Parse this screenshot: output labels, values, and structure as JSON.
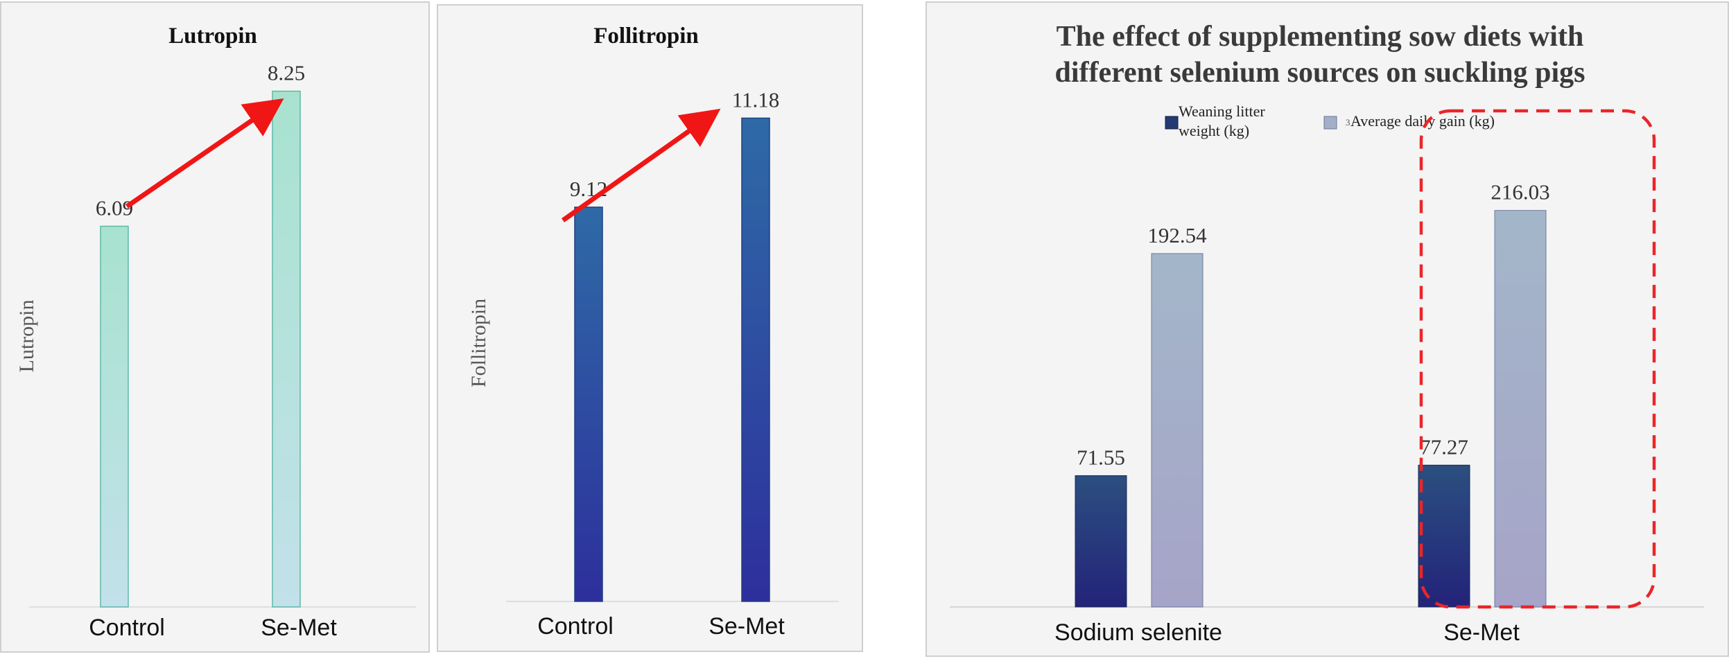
{
  "chart_data": [
    {
      "type": "bar",
      "title": "Lutropin",
      "ylabel": "Lutropin",
      "xlabel": "",
      "categories": [
        "Control",
        "Se-Met"
      ],
      "values": [
        6.09,
        8.25
      ],
      "labels": [
        "6.09",
        "8.25"
      ],
      "ylim": [
        0,
        8.7
      ],
      "colors": {
        "top": "#a8e2cf",
        "bottom": "#c2e1ea",
        "edge": "#5dbaa8"
      },
      "annotation": "red-arrow-increase"
    },
    {
      "type": "bar",
      "title": "Follitropin",
      "ylabel": "Follitropin",
      "xlabel": "",
      "categories": [
        "Control",
        "Se-Met"
      ],
      "values": [
        9.12,
        11.18
      ],
      "labels": [
        "9.12",
        "11.18"
      ],
      "ylim": [
        0,
        11.7
      ],
      "colors": {
        "top": "#2e6aa6",
        "bottom": "#2d2f9c",
        "edge": "#1f3e84"
      },
      "annotation": "red-arrow-increase"
    },
    {
      "type": "bar",
      "title": "The effect of supplementing sow diets with different selenium sources on suckling pigs",
      "title_lines": [
        "The effect of supplementing sow diets with",
        "different selenium sources on suckling pigs"
      ],
      "xlabel": "",
      "ylabel": "",
      "categories": [
        "Sodium selenite",
        "Se-Met"
      ],
      "series": [
        {
          "name": "Weaning litter weight (kg)",
          "legend_lines": [
            "Weaning litter",
            "weight (kg)"
          ],
          "values": [
            71.55,
            77.27
          ],
          "labels": [
            "71.55",
            "77.27"
          ],
          "top": "#2b4f7f",
          "bottom": "#23237a"
        },
        {
          "name": "Average daily gain (kg)",
          "legend_lines": [
            "Average daily gain (kg)"
          ],
          "values": [
            192.54,
            216.03
          ],
          "labels": [
            "192.54",
            "216.03"
          ],
          "top": "#a3b6c9",
          "bottom": "#a6a4c8"
        }
      ],
      "legend_marker_text": "3",
      "ylim": [
        0,
        228
      ],
      "annotation": "red-dashed-highlight-Se-Met",
      "colors": {
        "highlight": "#e8262a",
        "arrow": "#f01616"
      }
    }
  ]
}
